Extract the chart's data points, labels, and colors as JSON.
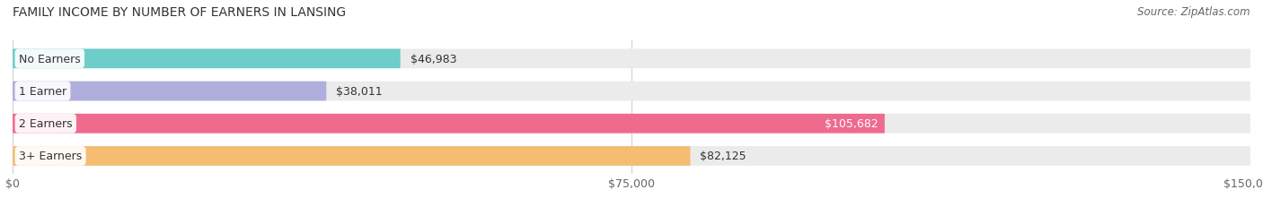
{
  "title": "FAMILY INCOME BY NUMBER OF EARNERS IN LANSING",
  "source": "Source: ZipAtlas.com",
  "categories": [
    "No Earners",
    "1 Earner",
    "2 Earners",
    "3+ Earners"
  ],
  "values": [
    46983,
    38011,
    105682,
    82125
  ],
  "bar_colors": [
    "#6dcdc8",
    "#b0aedd",
    "#ee6b8e",
    "#f5bc72"
  ],
  "label_colors": [
    "#444444",
    "#444444",
    "#ffffff",
    "#444444"
  ],
  "xlim": [
    0,
    150000
  ],
  "xticks": [
    0,
    75000,
    150000
  ],
  "xtick_labels": [
    "$0",
    "$75,000",
    "$150,000"
  ],
  "background_color": "#ffffff",
  "bar_background_color": "#ebebeb",
  "bar_height": 0.6,
  "figsize": [
    14.06,
    2.32
  ],
  "dpi": 100
}
